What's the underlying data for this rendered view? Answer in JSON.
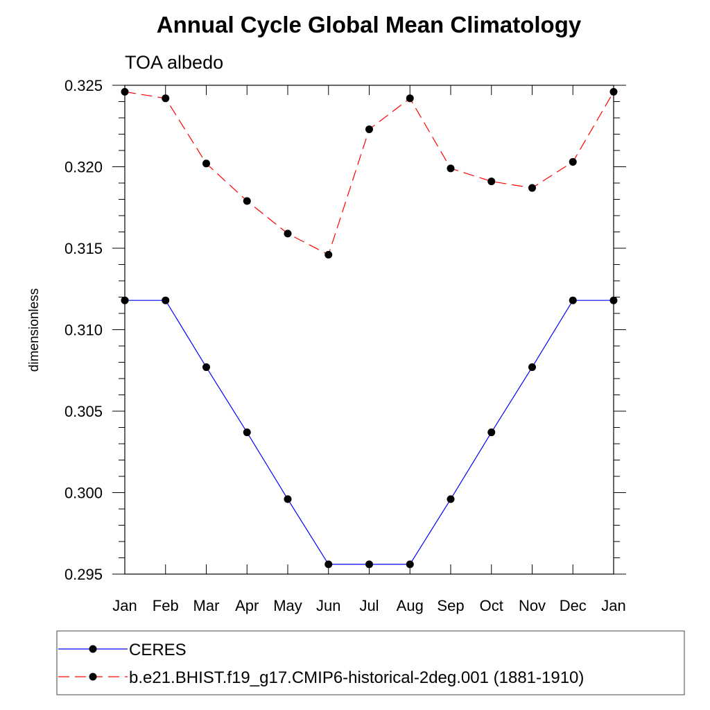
{
  "chart_data": {
    "type": "line",
    "title": "Annual Cycle Global Mean Climatology",
    "subtitle": "TOA albedo",
    "xlabel": "",
    "ylabel": "dimensionless",
    "categories": [
      "Jan",
      "Feb",
      "Mar",
      "Apr",
      "May",
      "Jun",
      "Jul",
      "Aug",
      "Sep",
      "Oct",
      "Nov",
      "Dec",
      "Jan"
    ],
    "ylim": [
      0.295,
      0.325
    ],
    "yticks": [
      "0.295",
      "0.300",
      "0.305",
      "0.310",
      "0.315",
      "0.320",
      "0.325"
    ],
    "yticks_values": [
      0.295,
      0.3,
      0.305,
      0.31,
      0.315,
      0.32,
      0.325
    ],
    "grid": false,
    "legend_position": "bottom",
    "series": [
      {
        "name": "CERES",
        "color": "#0000ff",
        "line_style": "solid",
        "marker": "filled-circle",
        "values": [
          0.3118,
          0.3118,
          0.3077,
          0.3037,
          0.2996,
          0.2956,
          0.2956,
          0.2956,
          0.2996,
          0.3037,
          0.3077,
          0.3118,
          0.3118
        ]
      },
      {
        "name": "b.e21.BHIST.f19_g17.CMIP6-historical-2deg.001 (1881-1910)",
        "color": "#ff0000",
        "line_style": "dashed",
        "marker": "filled-circle",
        "values": [
          0.3246,
          0.3242,
          0.3202,
          0.3179,
          0.3159,
          0.3146,
          0.3223,
          0.3242,
          0.3199,
          0.3191,
          0.3187,
          0.3203,
          0.3246
        ]
      }
    ]
  }
}
